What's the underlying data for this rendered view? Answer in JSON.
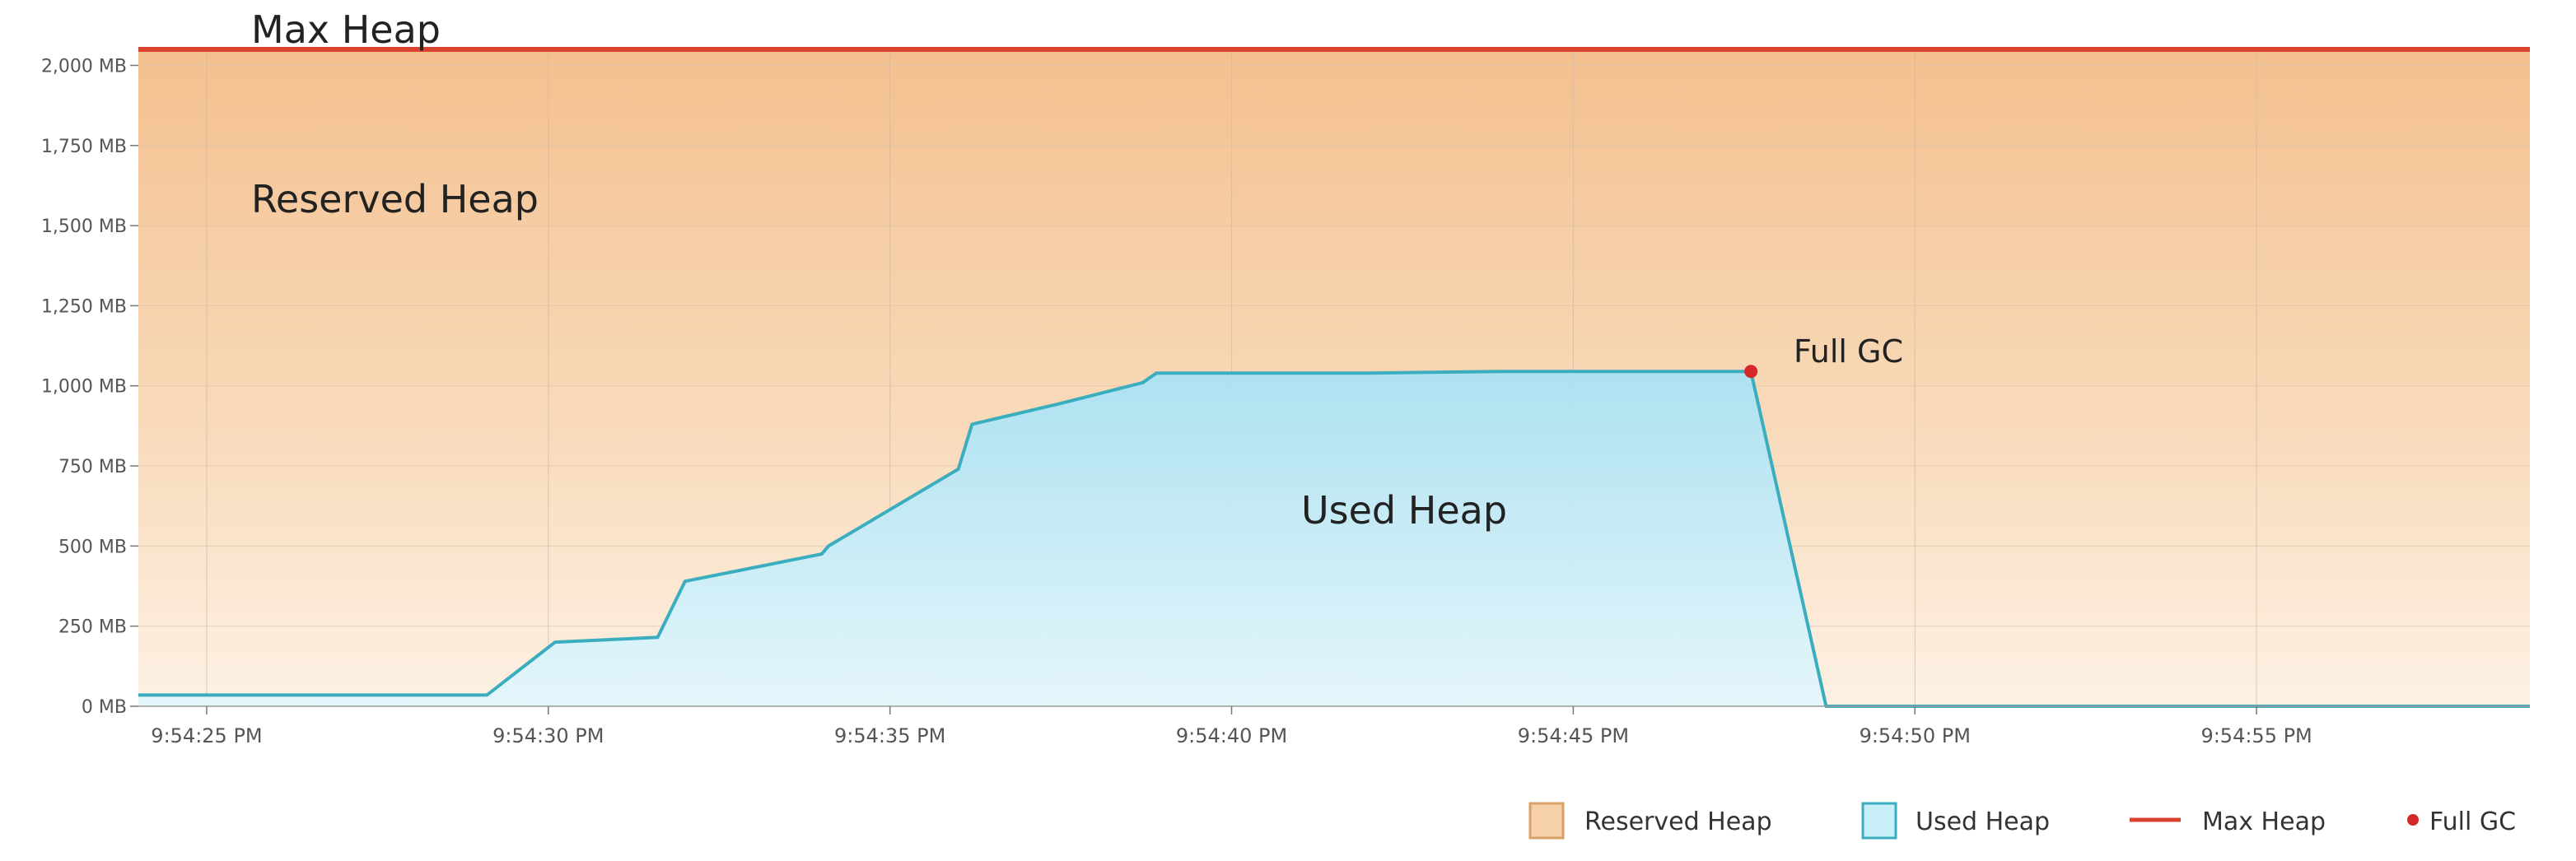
{
  "chart_data": {
    "type": "area",
    "title": "",
    "xlabel": "",
    "ylabel": "",
    "unit": "MB",
    "x_ticks": [
      "9:54:25 PM",
      "9:54:30 PM",
      "9:54:35 PM",
      "9:54:40 PM",
      "9:54:45 PM",
      "9:54:50 PM",
      "9:54:55 PM"
    ],
    "x_tick_seconds": [
      25,
      30,
      35,
      40,
      45,
      50,
      55
    ],
    "xlim": [
      24,
      59
    ],
    "y_ticks": [
      "0 MB",
      "250 MB",
      "500 MB",
      "750 MB",
      "1,000 MB",
      "1,250 MB",
      "1,500 MB",
      "1,750 MB",
      "2,000 MB"
    ],
    "y_tick_values": [
      0,
      250,
      500,
      750,
      1000,
      1250,
      1500,
      1750,
      2000
    ],
    "ylim": [
      0,
      2050
    ],
    "grid": true,
    "legend_position": "bottom-right",
    "series": [
      {
        "name": "Reserved Heap",
        "color": "#f5c79a",
        "x": [
          24,
          59
        ],
        "y": [
          2048,
          2048
        ]
      },
      {
        "name": "Used Heap",
        "color": "#3aaebf",
        "fill": "#bfeaf7",
        "x": [
          24,
          29.1,
          30.1,
          31.6,
          32.0,
          34.0,
          34.1,
          36.0,
          36.2,
          37.5,
          38.7,
          38.9,
          42,
          44,
          47.6,
          48.7,
          59
        ],
        "y": [
          35,
          35,
          200,
          215,
          390,
          475,
          500,
          740,
          880,
          945,
          1010,
          1040,
          1040,
          1045,
          1045,
          0,
          0
        ]
      },
      {
        "name": "Max Heap",
        "color": "#d9432f",
        "x": [
          24,
          59
        ],
        "y": [
          2050,
          2050
        ]
      }
    ],
    "markers": [
      {
        "name": "Full GC",
        "label": "Full GC",
        "x": 47.6,
        "y": 1045,
        "color": "#d62828"
      }
    ],
    "annotations": {
      "max_heap": "Max Heap",
      "reserved_heap": "Reserved Heap",
      "used_heap": "Used Heap",
      "full_gc": "Full GC"
    },
    "legend": [
      {
        "label": "Reserved Heap",
        "kind": "swatch",
        "fill": "#f5d0a8",
        "stroke": "#d9a06a"
      },
      {
        "label": "Used Heap",
        "kind": "swatch",
        "fill": "#c8eef9",
        "stroke": "#3aaebf"
      },
      {
        "label": "Max Heap",
        "kind": "line",
        "stroke": "#d9432f"
      },
      {
        "label": "Full GC",
        "kind": "dot",
        "fill": "#d62828"
      }
    ]
  }
}
